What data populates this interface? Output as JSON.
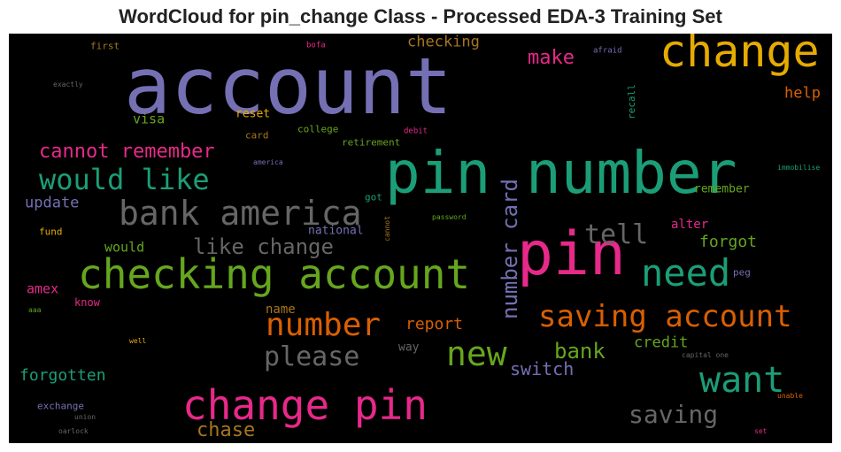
{
  "chart_data": {
    "type": "wordcloud",
    "title": "WordCloud for pin_change Class - Processed EDA-3 Training Set",
    "background": "#000000",
    "palette": [
      "#1b9e77",
      "#d95f02",
      "#7570b3",
      "#e7298a",
      "#66a61e",
      "#e6ab02",
      "#a6761d",
      "#666666"
    ],
    "words": [
      {
        "text": "account",
        "color": "#7570b3"
      },
      {
        "text": "pin number",
        "color": "#1b9e77"
      },
      {
        "text": "change",
        "color": "#e6ab02"
      },
      {
        "text": "pin",
        "color": "#e7298a"
      },
      {
        "text": "checking account",
        "color": "#66a61e"
      },
      {
        "text": "change pin",
        "color": "#e7298a"
      },
      {
        "text": "bank america",
        "color": "#666666"
      },
      {
        "text": "saving account",
        "color": "#d95f02"
      },
      {
        "text": "need",
        "color": "#1b9e77"
      },
      {
        "text": "want",
        "color": "#1b9e77"
      },
      {
        "text": "number",
        "color": "#d95f02"
      },
      {
        "text": "new",
        "color": "#66a61e"
      },
      {
        "text": "please",
        "color": "#666666"
      },
      {
        "text": "would like",
        "color": "#1b9e77"
      },
      {
        "text": "number card",
        "color": "#7570b3"
      },
      {
        "text": "tell",
        "color": "#666666"
      },
      {
        "text": "saving",
        "color": "#666666"
      },
      {
        "text": "like change",
        "color": "#666666"
      },
      {
        "text": "cannot remember",
        "color": "#e7298a"
      },
      {
        "text": "bank",
        "color": "#66a61e"
      },
      {
        "text": "make",
        "color": "#e7298a"
      },
      {
        "text": "chase",
        "color": "#a6761d"
      },
      {
        "text": "forgotten",
        "color": "#1b9e77"
      },
      {
        "text": "switch",
        "color": "#7570b3"
      },
      {
        "text": "report",
        "color": "#d95f02"
      },
      {
        "text": "forgot",
        "color": "#66a61e"
      },
      {
        "text": "credit",
        "color": "#66a61e"
      },
      {
        "text": "update",
        "color": "#7570b3"
      },
      {
        "text": "checking",
        "color": "#a6761d"
      },
      {
        "text": "help",
        "color": "#d95f02"
      },
      {
        "text": "visa",
        "color": "#66a61e"
      },
      {
        "text": "would",
        "color": "#66a61e"
      },
      {
        "text": "amex",
        "color": "#e7298a"
      },
      {
        "text": "name",
        "color": "#a6761d"
      },
      {
        "text": "alter",
        "color": "#e7298a"
      },
      {
        "text": "remember",
        "color": "#66a61e"
      },
      {
        "text": "reset",
        "color": "#e6ab02"
      },
      {
        "text": "way",
        "color": "#666666"
      },
      {
        "text": "national",
        "color": "#7570b3"
      },
      {
        "text": "know",
        "color": "#e7298a"
      },
      {
        "text": "exchange",
        "color": "#7570b3"
      },
      {
        "text": "college",
        "color": "#66a61e"
      },
      {
        "text": "retirement",
        "color": "#66a61e"
      },
      {
        "text": "card",
        "color": "#a6761d"
      },
      {
        "text": "fund",
        "color": "#e6ab02"
      },
      {
        "text": "first",
        "color": "#a6761d"
      },
      {
        "text": "recall",
        "color": "#1b9e77"
      },
      {
        "text": "got",
        "color": "#1b9e77"
      },
      {
        "text": "peg",
        "color": "#7570b3"
      },
      {
        "text": "bofa",
        "color": "#e7298a"
      },
      {
        "text": "afraid",
        "color": "#7570b3"
      },
      {
        "text": "exactly",
        "color": "#666666"
      },
      {
        "text": "debit",
        "color": "#e7298a"
      },
      {
        "text": "america",
        "color": "#7570b3"
      },
      {
        "text": "immobilise",
        "color": "#1b9e77"
      },
      {
        "text": "password",
        "color": "#66a61e"
      },
      {
        "text": "cannot",
        "color": "#a6761d"
      },
      {
        "text": "aaa",
        "color": "#66a61e"
      },
      {
        "text": "well",
        "color": "#e6ab02"
      },
      {
        "text": "capital one",
        "color": "#666666"
      },
      {
        "text": "unable",
        "color": "#d95f02"
      },
      {
        "text": "union",
        "color": "#666666"
      },
      {
        "text": "oarlock",
        "color": "#666666"
      },
      {
        "text": "set",
        "color": "#e7298a"
      }
    ]
  }
}
